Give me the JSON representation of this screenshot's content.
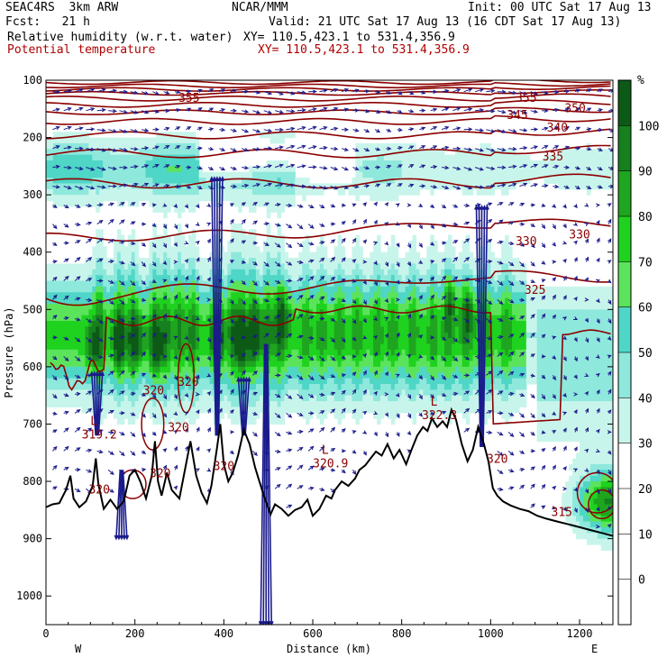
{
  "header": {
    "model": "SEAC4RS  3km ARW",
    "org": "NCAR/MMM",
    "init": "Init: 00 UTC Sat 17 Aug 13",
    "fcst": "Fcst:   21 h",
    "valid": "Valid: 21 UTC Sat 17 Aug 13 (16 CDT Sat 17 Aug 13)",
    "field1": "Relative humidity (w.r.t. water)",
    "xy1": "XY= 110.5,423.1 to 531.4,356.9",
    "field2": "Potential temperature",
    "xy2": "XY= 110.5,423.1 to 531.4,356.9"
  },
  "colors": {
    "theta": "#8b0000",
    "wind": "#1a1a8c",
    "terrain": "#000000"
  },
  "chart_data": {
    "type": "heatmap",
    "xlabel": "Distance (km)",
    "ylabel": "Pressure (hPa)",
    "xlim": [
      0,
      1275
    ],
    "ylim": [
      100,
      1050
    ],
    "xticks": [
      0,
      200,
      400,
      600,
      800,
      1000,
      1200
    ],
    "yticks": [
      100,
      200,
      300,
      400,
      500,
      600,
      700,
      800,
      900,
      1000
    ],
    "end_labels": {
      "left": "W",
      "right": "E"
    },
    "colorbar": {
      "unit": "%",
      "levels": [
        0,
        10,
        20,
        30,
        40,
        50,
        60,
        70,
        80,
        90,
        100
      ],
      "colors": [
        "#ffffff",
        "#ffffff",
        "#ffffff",
        "#ffffff",
        "#c8f5eb",
        "#8ee8dc",
        "#4fd6c6",
        "#5ce35c",
        "#1fd21f",
        "#1fa51f",
        "#16801f",
        "#0c5a16"
      ]
    },
    "theta_contour_labels": [
      {
        "x": 322,
        "p": 130,
        "text": "355"
      },
      {
        "x": 1080,
        "p": 130,
        "text": "355"
      },
      {
        "x": 1190,
        "p": 148,
        "text": "350"
      },
      {
        "x": 1060,
        "p": 160,
        "text": "345"
      },
      {
        "x": 1150,
        "p": 182,
        "text": "340"
      },
      {
        "x": 1140,
        "p": 232,
        "text": "335"
      },
      {
        "x": 1080,
        "p": 380,
        "text": "330"
      },
      {
        "x": 1200,
        "p": 368,
        "text": "330"
      },
      {
        "x": 1100,
        "p": 465,
        "text": "325"
      },
      {
        "x": 242,
        "p": 640,
        "text": "320"
      },
      {
        "x": 320,
        "p": 625,
        "text": "320"
      },
      {
        "x": 298,
        "p": 705,
        "text": "320"
      },
      {
        "x": 257,
        "p": 785,
        "text": "320"
      },
      {
        "x": 120,
        "p": 813,
        "text": "320"
      },
      {
        "x": 1015,
        "p": 760,
        "text": "320"
      },
      {
        "x": 1160,
        "p": 853,
        "text": "315"
      }
    ],
    "low_markers": [
      {
        "x": 120,
        "p": 705,
        "letter": "L",
        "value": "319.2"
      },
      {
        "x": 640,
        "p": 755,
        "letter": "L",
        "value": "320.9"
      },
      {
        "x": 885,
        "p": 671,
        "letter": "L",
        "value": "322.3"
      },
      {
        "x": 400,
        "p": 760,
        "letter": "",
        "value": "320"
      }
    ]
  }
}
